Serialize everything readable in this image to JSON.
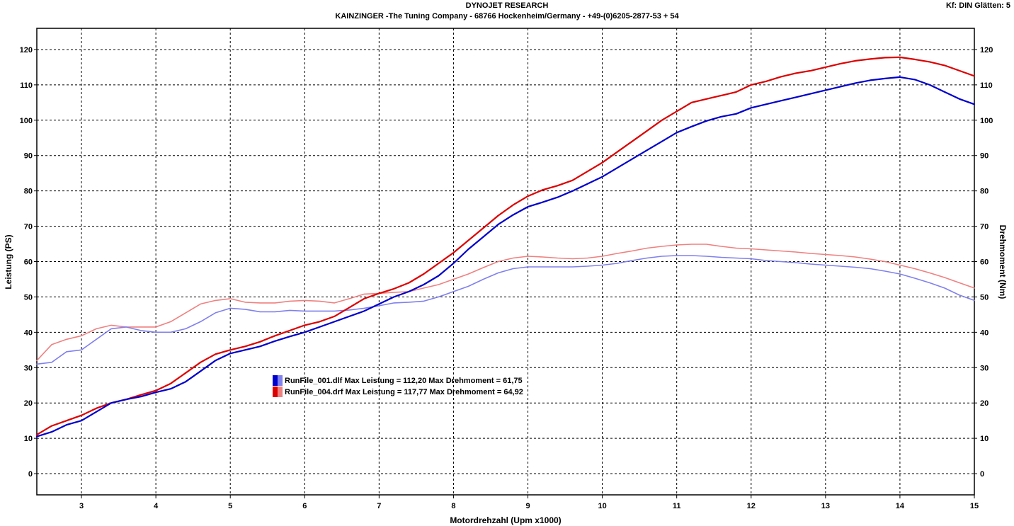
{
  "header": {
    "title": "DYNOJET RESEARCH",
    "subtitle": "KAINZINGER -The Tuning Company - 68766 Hockenheim/Germany - +49-(0)6205-2877-53 + 54",
    "corner": "Kf: DIN  Glätten: 5"
  },
  "legend": {
    "entries": [
      {
        "text": "RunFile_001.dlf Max Leistung = 112,20 Max Drehmoment = 61,75",
        "color_power": "#0000cc",
        "color_torque": "#8080ee"
      },
      {
        "text": "RunFile_004.drf Max Leistung = 117,77 Max Drehmoment = 64,92",
        "color_power": "#dd0000",
        "color_torque": "#f08080"
      }
    ]
  },
  "chart_data": {
    "type": "line",
    "xlabel": "Motordrehzahl (Upm x1000)",
    "ylabel": "Leistung (PS)",
    "y2label": "Drehmoment (Nm)",
    "xlim": [
      2.4,
      15
    ],
    "ylim": [
      -6,
      126
    ],
    "y2lim": [
      -6,
      126
    ],
    "xticks": [
      "3",
      "4",
      "5",
      "6",
      "7",
      "8",
      "9",
      "10",
      "11",
      "12",
      "13",
      "14",
      "15"
    ],
    "xtick_values": [
      3,
      4,
      5,
      6,
      7,
      8,
      9,
      10,
      11,
      12,
      13,
      14,
      15
    ],
    "yticks": [
      "0",
      "10",
      "20",
      "30",
      "40",
      "50",
      "60",
      "70",
      "80",
      "90",
      "100",
      "110",
      "120"
    ],
    "ytick_values": [
      0,
      10,
      20,
      30,
      40,
      50,
      60,
      70,
      80,
      90,
      100,
      110,
      120
    ],
    "grid": true,
    "series": [
      {
        "run": "RunFile_001.dlf",
        "axis": "left",
        "color": "#0000cc",
        "width": 2.2,
        "x": [
          2.4,
          2.6,
          2.8,
          3.0,
          3.2,
          3.4,
          3.6,
          3.8,
          4.0,
          4.2,
          4.4,
          4.6,
          4.8,
          5.0,
          5.2,
          5.4,
          5.6,
          5.8,
          6.0,
          6.2,
          6.4,
          6.6,
          6.8,
          7.0,
          7.2,
          7.4,
          7.6,
          7.8,
          8.0,
          8.2,
          8.4,
          8.6,
          8.8,
          9.0,
          9.2,
          9.4,
          9.6,
          9.8,
          10.0,
          10.2,
          10.4,
          10.6,
          10.8,
          11.0,
          11.2,
          11.4,
          11.6,
          11.8,
          12.0,
          12.2,
          12.4,
          12.6,
          12.8,
          13.0,
          13.2,
          13.4,
          13.6,
          13.8,
          14.0,
          14.2,
          14.4,
          14.6,
          14.8,
          15.0
        ],
        "y": [
          10.5,
          11.8,
          13.8,
          15.0,
          17.5,
          20.0,
          21.0,
          21.8,
          23.0,
          24.0,
          26.0,
          29.0,
          32.0,
          34.0,
          35.0,
          36.0,
          37.5,
          38.8,
          40.0,
          41.5,
          43.0,
          44.5,
          46.0,
          48.0,
          50.0,
          51.5,
          53.5,
          56.0,
          59.5,
          63.5,
          67.0,
          70.5,
          73.2,
          75.5,
          76.8,
          78.2,
          80.0,
          82.0,
          84.0,
          86.5,
          89.0,
          91.5,
          94.0,
          96.5,
          98.2,
          99.8,
          101.0,
          101.8,
          103.5,
          104.5,
          105.5,
          106.5,
          107.5,
          108.5,
          109.5,
          110.5,
          111.3,
          111.8,
          112.2,
          111.5,
          110.0,
          108.0,
          106.0,
          104.5
        ]
      },
      {
        "run": "RunFile_004.drf",
        "axis": "left",
        "color": "#dd0000",
        "width": 2.2,
        "x": [
          2.4,
          2.6,
          2.8,
          3.0,
          3.2,
          3.4,
          3.6,
          3.8,
          4.0,
          4.2,
          4.4,
          4.6,
          4.8,
          5.0,
          5.2,
          5.4,
          5.6,
          5.8,
          6.0,
          6.2,
          6.4,
          6.6,
          6.8,
          7.0,
          7.2,
          7.4,
          7.6,
          7.8,
          8.0,
          8.2,
          8.4,
          8.6,
          8.8,
          9.0,
          9.2,
          9.4,
          9.6,
          9.8,
          10.0,
          10.2,
          10.4,
          10.6,
          10.8,
          11.0,
          11.2,
          11.4,
          11.6,
          11.8,
          12.0,
          12.2,
          12.4,
          12.6,
          12.8,
          13.0,
          13.2,
          13.4,
          13.6,
          13.8,
          14.0,
          14.2,
          14.4,
          14.6,
          14.8,
          15.0
        ],
        "y": [
          11.0,
          13.5,
          15.0,
          16.5,
          18.5,
          20.0,
          21.0,
          22.3,
          23.5,
          25.5,
          28.5,
          31.5,
          33.8,
          35.0,
          36.0,
          37.3,
          39.0,
          40.5,
          42.0,
          43.0,
          44.5,
          47.0,
          49.5,
          51.0,
          52.3,
          54.0,
          56.5,
          59.5,
          62.5,
          66.0,
          69.5,
          73.0,
          76.0,
          78.5,
          80.3,
          81.5,
          83.0,
          85.5,
          88.0,
          91.0,
          94.0,
          97.0,
          100.0,
          102.5,
          105.0,
          106.0,
          107.0,
          108.0,
          110.0,
          111.0,
          112.3,
          113.3,
          114.0,
          115.0,
          116.0,
          116.8,
          117.3,
          117.7,
          117.8,
          117.2,
          116.5,
          115.5,
          114.0,
          112.5
        ]
      },
      {
        "run": "RunFile_001.dlf",
        "axis": "right",
        "color": "#8080ee",
        "width": 1.6,
        "x": [
          2.4,
          2.6,
          2.8,
          3.0,
          3.2,
          3.4,
          3.6,
          3.8,
          4.0,
          4.2,
          4.4,
          4.6,
          4.8,
          5.0,
          5.2,
          5.4,
          5.6,
          5.8,
          6.0,
          6.2,
          6.4,
          6.6,
          6.8,
          7.0,
          7.2,
          7.4,
          7.6,
          7.8,
          8.0,
          8.2,
          8.4,
          8.6,
          8.8,
          9.0,
          9.2,
          9.4,
          9.6,
          9.8,
          10.0,
          10.2,
          10.4,
          10.6,
          10.8,
          11.0,
          11.2,
          11.4,
          11.6,
          11.8,
          12.0,
          12.2,
          12.4,
          12.6,
          12.8,
          13.0,
          13.2,
          13.4,
          13.6,
          13.8,
          14.0,
          14.2,
          14.4,
          14.6,
          14.8,
          15.0
        ],
        "y": [
          31.0,
          31.5,
          34.5,
          35.0,
          38.0,
          41.0,
          41.5,
          40.5,
          40.0,
          40.0,
          41.0,
          43.0,
          45.5,
          46.8,
          46.5,
          45.8,
          45.8,
          46.2,
          46.0,
          46.0,
          46.0,
          46.3,
          46.8,
          47.5,
          48.3,
          48.5,
          48.8,
          50.0,
          51.5,
          53.0,
          55.0,
          56.8,
          58.0,
          58.5,
          58.5,
          58.5,
          58.5,
          58.7,
          59.0,
          59.5,
          60.3,
          61.0,
          61.5,
          61.7,
          61.7,
          61.5,
          61.2,
          61.0,
          60.8,
          60.3,
          60.0,
          59.7,
          59.3,
          59.0,
          58.7,
          58.4,
          58.0,
          57.3,
          56.5,
          55.3,
          54.0,
          52.5,
          50.5,
          49.0
        ]
      },
      {
        "run": "RunFile_004.drf",
        "axis": "right",
        "color": "#f08080",
        "width": 1.6,
        "x": [
          2.4,
          2.6,
          2.8,
          3.0,
          3.2,
          3.4,
          3.6,
          3.8,
          4.0,
          4.2,
          4.4,
          4.6,
          4.8,
          5.0,
          5.2,
          5.4,
          5.6,
          5.8,
          6.0,
          6.2,
          6.4,
          6.6,
          6.8,
          7.0,
          7.2,
          7.4,
          7.6,
          7.8,
          8.0,
          8.2,
          8.4,
          8.6,
          8.8,
          9.0,
          9.2,
          9.4,
          9.6,
          9.8,
          10.0,
          10.2,
          10.4,
          10.6,
          10.8,
          11.0,
          11.2,
          11.4,
          11.6,
          11.8,
          12.0,
          12.2,
          12.4,
          12.6,
          12.8,
          13.0,
          13.2,
          13.4,
          13.6,
          13.8,
          14.0,
          14.2,
          14.4,
          14.6,
          14.8,
          15.0
        ],
        "y": [
          32.0,
          36.5,
          38.0,
          39.0,
          41.0,
          42.0,
          41.5,
          41.5,
          41.5,
          43.0,
          45.5,
          48.0,
          49.0,
          49.5,
          48.5,
          48.3,
          48.3,
          48.8,
          49.0,
          48.8,
          48.3,
          49.5,
          50.8,
          51.0,
          51.3,
          51.5,
          52.5,
          53.5,
          55.0,
          56.5,
          58.3,
          60.0,
          61.0,
          61.5,
          61.3,
          61.0,
          60.8,
          61.0,
          61.5,
          62.3,
          63.0,
          63.8,
          64.3,
          64.7,
          64.9,
          64.9,
          64.3,
          63.8,
          63.6,
          63.3,
          63.0,
          62.7,
          62.3,
          62.0,
          61.7,
          61.3,
          60.7,
          60.0,
          59.0,
          58.0,
          56.8,
          55.5,
          54.0,
          52.5
        ]
      }
    ]
  }
}
